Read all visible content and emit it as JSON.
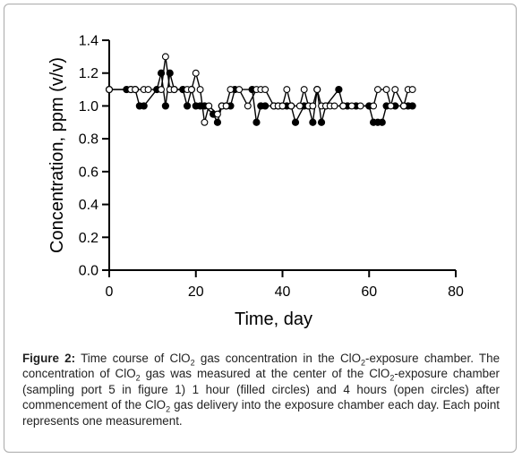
{
  "chart_data": {
    "type": "scatter",
    "xlabel": "Time, day",
    "ylabel": "Concentration, ppm (v/v)",
    "xlim": [
      0,
      80
    ],
    "ylim": [
      0,
      1.4
    ],
    "xticks": [
      "0",
      "20",
      "40",
      "60",
      "80"
    ],
    "yticks": [
      "0.0",
      "0.2",
      "0.4",
      "0.6",
      "0.8",
      "1.0",
      "1.2",
      "1.4"
    ],
    "grid": false,
    "series": [
      {
        "name": "1 hour (filled circles)",
        "marker": "filled-circle",
        "x": [
          0,
          4,
          5,
          6,
          7,
          8,
          11,
          12,
          13,
          14,
          15,
          17,
          18,
          19,
          20,
          21,
          22,
          24,
          25,
          26,
          27,
          28,
          29,
          33,
          34,
          35,
          36,
          38,
          39,
          40,
          41,
          42,
          43,
          45,
          46,
          47,
          48,
          49,
          50,
          53,
          54,
          55,
          57,
          60,
          61,
          62,
          63,
          64,
          66,
          68,
          69,
          70
        ],
        "y": [
          1.1,
          1.1,
          1.1,
          1.1,
          1.0,
          1.0,
          1.1,
          1.2,
          1.0,
          1.2,
          1.1,
          1.1,
          1.0,
          1.1,
          1.0,
          1.0,
          1.0,
          0.95,
          0.9,
          1.0,
          1.0,
          1.0,
          1.1,
          1.1,
          0.9,
          1.0,
          1.0,
          1.0,
          1.0,
          1.0,
          1.0,
          1.0,
          0.9,
          1.0,
          1.0,
          0.9,
          1.1,
          0.9,
          1.0,
          1.1,
          1.0,
          1.0,
          1.0,
          1.0,
          0.9,
          0.9,
          0.9,
          1.0,
          1.0,
          1.0,
          1.0,
          1.0
        ]
      },
      {
        "name": "4 hours (open circles)",
        "marker": "open-circle",
        "x": [
          0,
          5,
          6,
          8,
          9,
          12,
          13,
          14,
          15,
          18,
          19,
          20,
          21,
          22,
          23,
          25,
          26,
          27,
          28,
          30,
          32,
          34,
          35,
          36,
          38,
          39,
          40,
          41,
          42,
          44,
          45,
          46,
          47,
          48,
          49,
          50,
          51,
          52,
          54,
          56,
          58,
          61,
          62,
          64,
          65,
          66,
          68,
          69,
          70
        ],
        "y": [
          1.1,
          1.1,
          1.1,
          1.1,
          1.1,
          1.1,
          1.3,
          1.1,
          1.1,
          1.1,
          1.1,
          1.2,
          1.1,
          0.9,
          1.0,
          0.95,
          1.0,
          1.0,
          1.1,
          1.1,
          1.0,
          1.1,
          1.1,
          1.1,
          1.0,
          1.0,
          1.0,
          1.1,
          1.0,
          1.0,
          1.1,
          1.0,
          1.0,
          1.1,
          1.0,
          1.0,
          1.0,
          1.0,
          1.0,
          1.0,
          1.0,
          1.0,
          1.1,
          1.1,
          1.0,
          1.1,
          1.0,
          1.1,
          1.1
        ]
      }
    ]
  },
  "caption": {
    "label": "Figure 2:",
    "seg1": " Time course of ClO",
    "sub1": "2",
    "seg2": " gas concentration in the ClO",
    "sub2": "2",
    "seg3": "-exposure chamber. The concentration of ClO",
    "sub3": "2",
    "seg4": " gas was measured at the center of the ClO",
    "sub4": "2",
    "seg5": "-exposure chamber (sampling port 5 in figure 1) 1 hour (filled circles) and 4 hours (open circles) after commencement of the ClO",
    "sub5": "2",
    "seg6": " gas delivery into the exposure chamber each day. Each point represents one measurement."
  }
}
